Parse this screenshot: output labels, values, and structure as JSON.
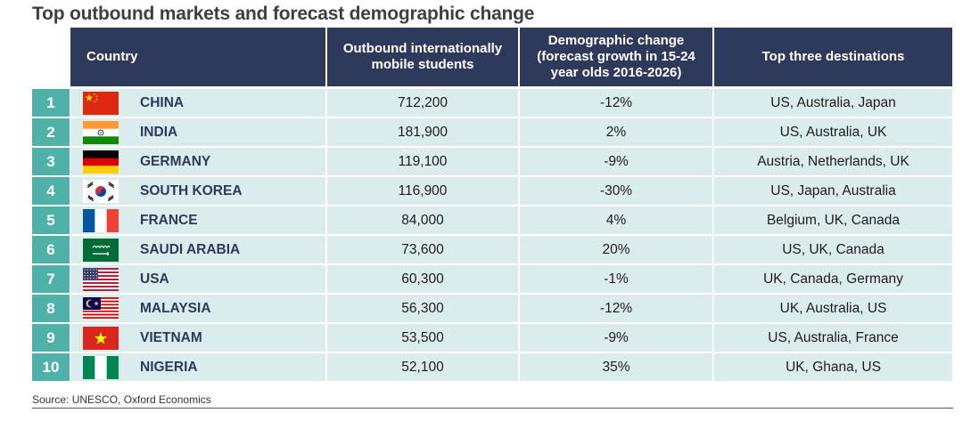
{
  "title": "Top outbound markets and forecast demographic change",
  "source": "Source: UNESCO, Oxford Economics",
  "colors": {
    "header": "#2e3a5c",
    "rank": "#4fb1a8",
    "row_bg": "#daeceb"
  },
  "chart_data": {
    "type": "table",
    "columns": [
      "Country",
      "Outbound internationally mobile students",
      "Demographic change (forecast growth in 15-24 year olds 2016-2026)",
      "Top three destinations"
    ],
    "rows": [
      {
        "rank": "1",
        "country": "CHINA",
        "flag": "china-flag-icon",
        "outbound": "712,200",
        "change": "-12%",
        "destinations": "US, Australia, Japan"
      },
      {
        "rank": "2",
        "country": "INDIA",
        "flag": "india-flag-icon",
        "outbound": "181,900",
        "change": "2%",
        "destinations": "US, Australia, UK"
      },
      {
        "rank": "3",
        "country": "GERMANY",
        "flag": "germany-flag-icon",
        "outbound": "119,100",
        "change": "-9%",
        "destinations": "Austria, Netherlands, UK"
      },
      {
        "rank": "4",
        "country": "SOUTH KOREA",
        "flag": "south-korea-flag-icon",
        "outbound": "116,900",
        "change": "-30%",
        "destinations": "US, Japan, Australia"
      },
      {
        "rank": "5",
        "country": "FRANCE",
        "flag": "france-flag-icon",
        "outbound": "84,000",
        "change": "4%",
        "destinations": "Belgium, UK, Canada"
      },
      {
        "rank": "6",
        "country": "SAUDI ARABIA",
        "flag": "saudi-arabia-flag-icon",
        "outbound": "73,600",
        "change": "20%",
        "destinations": "US, UK, Canada"
      },
      {
        "rank": "7",
        "country": "USA",
        "flag": "usa-flag-icon",
        "outbound": "60,300",
        "change": "-1%",
        "destinations": "UK, Canada, Germany"
      },
      {
        "rank": "8",
        "country": "MALAYSIA",
        "flag": "malaysia-flag-icon",
        "outbound": "56,300",
        "change": "-12%",
        "destinations": "UK, Australia, US"
      },
      {
        "rank": "9",
        "country": "VIETNAM",
        "flag": "vietnam-flag-icon",
        "outbound": "53,500",
        "change": "-9%",
        "destinations": "US, Australia, France"
      },
      {
        "rank": "10",
        "country": "NIGERIA",
        "flag": "nigeria-flag-icon",
        "outbound": "52,100",
        "change": "35%",
        "destinations": "UK, Ghana, US"
      }
    ]
  }
}
